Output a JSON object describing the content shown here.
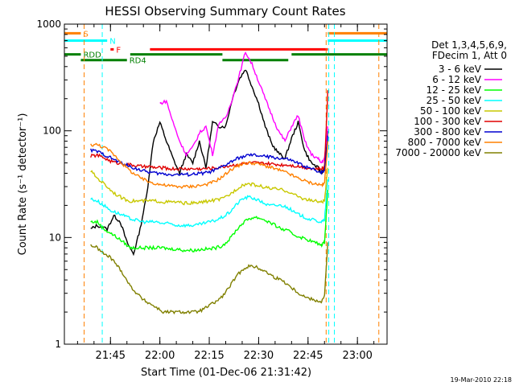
{
  "chart_data": {
    "type": "line",
    "title": "HESSI Observing Summary Count Rates",
    "xlabel": "Start Time (01-Dec-06 21:31:42)",
    "ylabel": "Count Rate (s⁻¹ detector⁻¹)",
    "yscale": "log",
    "ylim": [
      1,
      1000
    ],
    "xlim_minutes_after_2131": [
      0,
      98
    ],
    "x_ticks": [
      "21:45",
      "22:00",
      "22:15",
      "22:30",
      "22:45",
      "23:00"
    ],
    "y_ticks": [
      "1",
      "10",
      "100",
      "1000"
    ],
    "legend_header": [
      "Det 1,3,4,5,6,9,",
      "FDecim 1, Att 0"
    ],
    "footer_date": "19-Mar-2010 22:18",
    "markers": [
      {
        "label": "S",
        "color": "#ff8000",
        "value": 820,
        "segments": [
          [
            0,
            5
          ],
          [
            80,
            98
          ]
        ]
      },
      {
        "label": "N",
        "color": "#00ffff",
        "value": 700,
        "segments": [
          [
            0,
            13
          ],
          [
            80,
            98
          ]
        ]
      },
      {
        "label": "F",
        "color": "#ff0000",
        "value": 580,
        "segments": [
          [
            14,
            15
          ],
          [
            26,
            80
          ]
        ]
      },
      {
        "label": "RDD",
        "color": "#008000",
        "value": 520,
        "segments": [
          [
            0,
            5
          ],
          [
            20,
            48
          ],
          [
            69,
            98
          ]
        ]
      },
      {
        "label": "RD4",
        "color": "#008000",
        "value": 460,
        "segments": [
          [
            5,
            19
          ],
          [
            48,
            68
          ]
        ]
      }
    ],
    "vlines": [
      {
        "x": 6,
        "color": "#ff8000"
      },
      {
        "x": 11.5,
        "color": "#00ffff"
      },
      {
        "x": 79.5,
        "color": "#ff8000"
      },
      {
        "x": 80.3,
        "color": "#00ffff"
      },
      {
        "x": 82,
        "color": "#00ffff"
      },
      {
        "x": 95.5,
        "color": "#ff8000"
      }
    ],
    "series": [
      {
        "name": "3 - 6 keV",
        "color": "#000000",
        "x": [
          8,
          10,
          13,
          15,
          17,
          19,
          21,
          23,
          25,
          27,
          29,
          31,
          33,
          35,
          37,
          39,
          41,
          43,
          45,
          47,
          49,
          51,
          53,
          55,
          57,
          59,
          61,
          63,
          65,
          67,
          69,
          71,
          73,
          75,
          77,
          78,
          79,
          80
        ],
        "y": [
          12,
          13,
          12,
          16,
          14,
          9,
          7,
          12,
          25,
          80,
          120,
          80,
          55,
          40,
          60,
          50,
          80,
          45,
          120,
          110,
          110,
          200,
          300,
          380,
          260,
          180,
          110,
          75,
          62,
          55,
          85,
          120,
          65,
          50,
          45,
          40,
          45,
          100
        ]
      },
      {
        "name": "6 - 12 keV",
        "color": "#ff00ff",
        "x": [
          29,
          31,
          33,
          35,
          37,
          39,
          41,
          43,
          45,
          47,
          49,
          51,
          53,
          55,
          57,
          59,
          61,
          63,
          65,
          67,
          69,
          71,
          73,
          75,
          77,
          78,
          79,
          80
        ],
        "y": [
          180,
          190,
          120,
          80,
          60,
          70,
          95,
          110,
          60,
          120,
          130,
          200,
          320,
          550,
          420,
          290,
          200,
          140,
          100,
          80,
          110,
          140,
          80,
          60,
          55,
          50,
          55,
          110
        ]
      },
      {
        "name": "12 - 25 keV",
        "color": "#00ff00",
        "x": [
          8,
          10,
          12,
          14,
          16,
          18,
          20,
          22,
          24,
          26,
          28,
          30,
          32,
          34,
          36,
          38,
          40,
          42,
          44,
          46,
          48,
          50,
          52,
          54,
          56,
          58,
          60,
          62,
          64,
          66,
          68,
          70,
          72,
          74,
          76,
          78,
          79,
          80
        ],
        "y": [
          14,
          14,
          12,
          11,
          10,
          9,
          8,
          8,
          8,
          8,
          8,
          8,
          7.8,
          7.8,
          7.6,
          7.6,
          7.6,
          7.8,
          7.8,
          8,
          8.4,
          9.5,
          11.5,
          13.5,
          15,
          15.5,
          15,
          14,
          13,
          12,
          11.5,
          10.5,
          10,
          9.5,
          9,
          8.5,
          9,
          28
        ]
      },
      {
        "name": "25 - 50 keV",
        "color": "#00ffff",
        "x": [
          8,
          10,
          12,
          14,
          16,
          18,
          20,
          22,
          24,
          26,
          28,
          30,
          32,
          34,
          36,
          38,
          40,
          42,
          44,
          46,
          48,
          50,
          52,
          54,
          56,
          58,
          60,
          62,
          64,
          66,
          68,
          70,
          72,
          74,
          76,
          78,
          79,
          80
        ],
        "y": [
          23,
          22,
          20,
          18,
          17,
          16,
          15,
          14.5,
          14,
          14,
          14,
          13.5,
          13.5,
          13,
          13,
          13,
          13,
          13.5,
          14,
          14.5,
          15.5,
          17,
          20,
          23,
          24,
          23,
          21.5,
          20,
          20,
          20,
          19,
          17,
          16,
          15,
          14.5,
          14,
          14.5,
          35
        ]
      },
      {
        "name": "50 - 100 keV",
        "color": "#c8c800",
        "x": [
          8,
          10,
          12,
          14,
          16,
          18,
          20,
          22,
          24,
          26,
          28,
          30,
          32,
          34,
          36,
          38,
          40,
          42,
          44,
          46,
          48,
          50,
          52,
          54,
          56,
          58,
          60,
          62,
          64,
          66,
          68,
          70,
          72,
          74,
          76,
          78,
          79,
          80
        ],
        "y": [
          42,
          36,
          32,
          28,
          25,
          23,
          22,
          22,
          22,
          22,
          22,
          21.5,
          21.5,
          21.5,
          21,
          21,
          21,
          21.5,
          22,
          22.5,
          23,
          25,
          28,
          31,
          32,
          31,
          30,
          29,
          28.5,
          28,
          27,
          25,
          23.5,
          22.5,
          22,
          21.5,
          22,
          45
        ]
      },
      {
        "name": "100 - 300 keV",
        "color": "#e00000",
        "x": [
          8,
          10,
          12,
          14,
          16,
          18,
          20,
          22,
          24,
          26,
          28,
          30,
          32,
          34,
          36,
          38,
          40,
          42,
          44,
          46,
          48,
          50,
          52,
          54,
          56,
          58,
          60,
          62,
          64,
          66,
          68,
          70,
          72,
          74,
          76,
          78,
          79,
          80
        ],
        "y": [
          58,
          59,
          56,
          52,
          50,
          49,
          48,
          47,
          46,
          46,
          45,
          45,
          44,
          44,
          44,
          44,
          44,
          44,
          44.5,
          45,
          46,
          47,
          48,
          49,
          50,
          50,
          49.5,
          49,
          48.5,
          48,
          48,
          47,
          46,
          45,
          44,
          44,
          45,
          240
        ]
      },
      {
        "name": "300 - 800 keV",
        "color": "#0000d0",
        "x": [
          8,
          10,
          12,
          14,
          16,
          18,
          20,
          22,
          24,
          26,
          28,
          30,
          32,
          34,
          36,
          38,
          40,
          42,
          44,
          46,
          48,
          50,
          52,
          54,
          56,
          58,
          60,
          62,
          64,
          66,
          68,
          70,
          72,
          74,
          76,
          78,
          79,
          80
        ],
        "y": [
          66,
          64,
          60,
          56,
          52,
          49,
          46,
          44,
          42,
          41,
          40,
          39.5,
          39,
          39,
          39,
          39,
          39.5,
          40,
          41,
          43,
          46,
          50,
          54,
          57,
          59,
          59,
          58,
          57,
          56,
          55,
          54,
          51,
          48,
          45,
          43,
          41,
          42,
          90
        ]
      },
      {
        "name": "800 - 7000 keV",
        "color": "#ff8000",
        "x": [
          8,
          10,
          12,
          14,
          16,
          18,
          20,
          22,
          24,
          26,
          28,
          30,
          32,
          34,
          36,
          38,
          40,
          42,
          44,
          46,
          48,
          50,
          52,
          54,
          56,
          58,
          60,
          62,
          64,
          66,
          68,
          70,
          72,
          74,
          76,
          78,
          79,
          80
        ],
        "y": [
          74,
          74,
          70,
          64,
          56,
          48,
          42,
          38,
          35,
          33,
          32,
          31,
          30.5,
          30,
          30,
          30,
          30.5,
          31,
          32,
          34,
          37,
          42,
          46,
          49,
          50,
          49.5,
          48,
          46,
          44,
          42,
          40,
          37,
          35,
          33,
          32,
          31,
          32,
          80
        ]
      },
      {
        "name": "7000 - 20000 keV",
        "color": "#808000",
        "x": [
          8,
          10,
          12,
          14,
          16,
          18,
          20,
          22,
          24,
          26,
          28,
          30,
          32,
          34,
          36,
          38,
          40,
          42,
          44,
          46,
          48,
          50,
          52,
          54,
          56,
          58,
          60,
          62,
          64,
          66,
          68,
          70,
          72,
          74,
          76,
          78,
          79,
          80
        ],
        "y": [
          8.5,
          8,
          7,
          6.5,
          5.5,
          4.5,
          3.5,
          3,
          2.6,
          2.4,
          2.2,
          2,
          2,
          2,
          2,
          2,
          2,
          2.1,
          2.3,
          2.5,
          2.8,
          3.4,
          4.2,
          5,
          5.4,
          5.3,
          5,
          4.6,
          4.2,
          4,
          3.6,
          3.2,
          2.9,
          2.7,
          2.6,
          2.5,
          2.8,
          9
        ]
      }
    ]
  }
}
